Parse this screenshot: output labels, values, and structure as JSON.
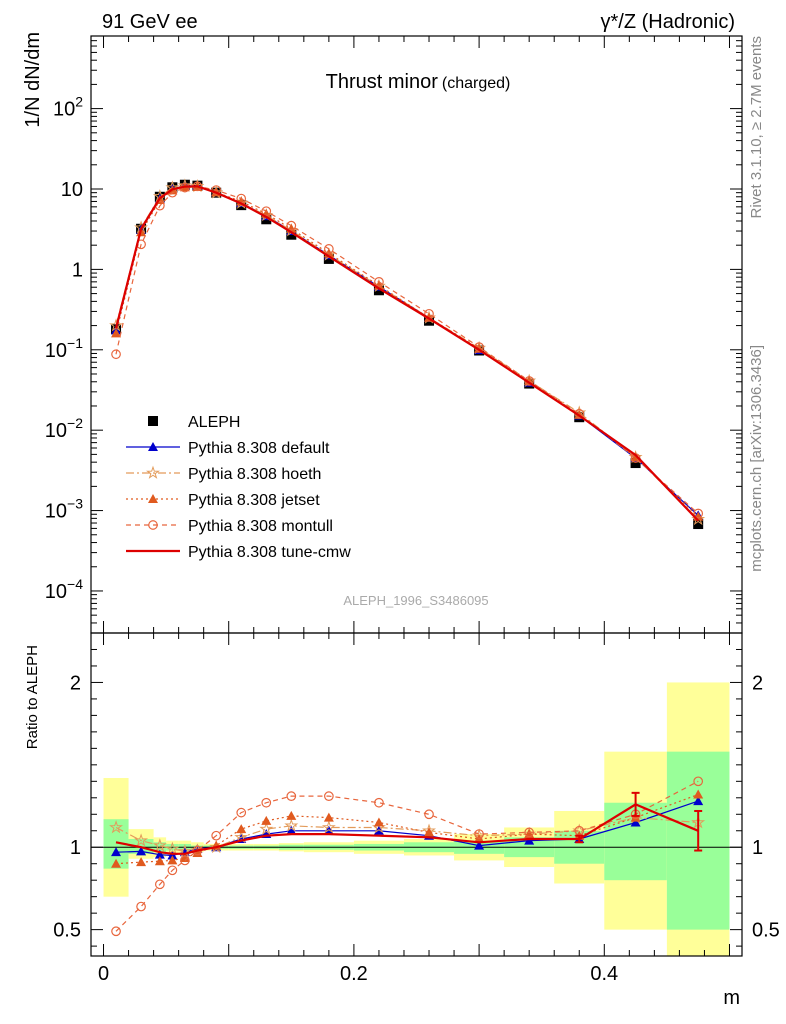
{
  "header": {
    "left": "91 GeV ee",
    "right": "γ*/Z (Hadronic)",
    "side_top": "Rivet 3.1.10, ≥ 2.7M events",
    "side_bottom": "mcplots.cern.ch [arXiv:1306.3436]"
  },
  "chart_data": [
    {
      "type": "line",
      "title": "Thrust minor",
      "subtitle": "(charged)",
      "ylabel": "1/N dN/dm",
      "xlabel": "m",
      "yscale": "log",
      "xlim": [
        -0.01,
        0.51
      ],
      "ylim": [
        3e-05,
        800
      ],
      "yticks": [
        {
          "v": 0.0001,
          "base": "10",
          "exp": "−4"
        },
        {
          "v": 0.001,
          "base": "10",
          "exp": "−3"
        },
        {
          "v": 0.01,
          "base": "10",
          "exp": "−2"
        },
        {
          "v": 0.1,
          "base": "10",
          "exp": "−1"
        },
        {
          "v": 1,
          "base": "1",
          "exp": ""
        },
        {
          "v": 10,
          "base": "10",
          "exp": ""
        },
        {
          "v": 100,
          "base": "10",
          "exp": "2"
        }
      ],
      "analysis": "ALEPH_1996_S3486095",
      "legend_position": "bottom-left",
      "x": [
        0.01,
        0.03,
        0.045,
        0.055,
        0.065,
        0.075,
        0.09,
        0.11,
        0.13,
        0.15,
        0.18,
        0.22,
        0.26,
        0.3,
        0.34,
        0.38,
        0.425,
        0.475
      ],
      "data": {
        "name": "ALEPH",
        "values": [
          0.18,
          3.2,
          8.0,
          10.5,
          11.3,
          11.0,
          9.0,
          6.3,
          4.2,
          2.7,
          1.35,
          0.55,
          0.23,
          0.098,
          0.038,
          0.0145,
          0.0039,
          0.00068
        ]
      },
      "series": [
        {
          "name": "Pythia 8.308 default",
          "color": "#0000cc",
          "dash": "",
          "marker": "triangle-filled",
          "values": [
            0.175,
            3.1,
            7.6,
            10.0,
            11.0,
            10.9,
            9.1,
            6.7,
            4.6,
            3.0,
            1.5,
            0.61,
            0.25,
            0.099,
            0.039,
            0.0152,
            0.0045,
            0.00087
          ]
        },
        {
          "name": "Pythia 8.308 hoeth",
          "color": "#e39b5a",
          "dash": "8,3,2,3",
          "marker": "star-open",
          "values": [
            0.2,
            3.3,
            8.1,
            10.4,
            11.0,
            10.8,
            9.0,
            6.7,
            4.7,
            3.05,
            1.52,
            0.62,
            0.25,
            0.105,
            0.041,
            0.0165,
            0.0046,
            0.00078
          ]
        },
        {
          "name": "Pythia 8.308 jetset",
          "color": "#e05a1f",
          "dash": "2,3",
          "marker": "triangle-filled",
          "values": [
            0.16,
            2.9,
            7.3,
            9.6,
            10.5,
            10.6,
            9.1,
            7.0,
            4.9,
            3.2,
            1.58,
            0.63,
            0.25,
            0.103,
            0.041,
            0.0155,
            0.0046,
            0.00084
          ]
        },
        {
          "name": "Pythia 8.308 montull",
          "color": "#e8663d",
          "dash": "5,4",
          "marker": "circle-open",
          "values": [
            0.088,
            2.05,
            6.2,
            9.0,
            10.4,
            10.8,
            9.7,
            7.6,
            5.3,
            3.5,
            1.8,
            0.7,
            0.28,
            0.108,
            0.041,
            0.016,
            0.0045,
            0.00092
          ]
        },
        {
          "name": "Pythia 8.308 tune-cmw",
          "color": "#dd0000",
          "dash": "",
          "marker": "none",
          "values": [
            0.185,
            3.2,
            7.7,
            9.9,
            10.7,
            10.8,
            9.0,
            6.6,
            4.5,
            2.9,
            1.45,
            0.58,
            0.245,
            0.1,
            0.039,
            0.0152,
            0.0049,
            0.00075
          ]
        }
      ]
    },
    {
      "type": "line",
      "ylabel": "Ratio to ALEPH",
      "xlabel": "m",
      "xlim": [
        -0.01,
        0.51
      ],
      "ylim": [
        0.34,
        2.3
      ],
      "yticks": [
        {
          "v": 0.5,
          "label": "0.5"
        },
        {
          "v": 1,
          "label": "1"
        },
        {
          "v": 2,
          "label": "2"
        }
      ],
      "xticks": [
        {
          "v": 0,
          "label": "0"
        },
        {
          "v": 0.2,
          "label": "0.2"
        },
        {
          "v": 0.4,
          "label": "0.4"
        }
      ],
      "reference_line": 1,
      "bands": [
        {
          "x0": 0.0,
          "x1": 0.02,
          "g": [
            0.87,
            1.17
          ],
          "y": [
            0.7,
            1.42
          ]
        },
        {
          "x0": 0.02,
          "x1": 0.04,
          "g": [
            0.96,
            1.05
          ],
          "y": [
            0.93,
            1.11
          ]
        },
        {
          "x0": 0.04,
          "x1": 0.05,
          "g": [
            0.97,
            1.03
          ],
          "y": [
            0.94,
            1.06
          ]
        },
        {
          "x0": 0.05,
          "x1": 0.06,
          "g": [
            0.98,
            1.02
          ],
          "y": [
            0.96,
            1.04
          ]
        },
        {
          "x0": 0.06,
          "x1": 0.07,
          "g": [
            0.98,
            1.02
          ],
          "y": [
            0.96,
            1.04
          ]
        },
        {
          "x0": 0.07,
          "x1": 0.08,
          "g": [
            0.99,
            1.01
          ],
          "y": [
            0.97,
            1.03
          ]
        },
        {
          "x0": 0.08,
          "x1": 0.1,
          "g": [
            0.99,
            1.01
          ],
          "y": [
            0.98,
            1.02
          ]
        },
        {
          "x0": 0.1,
          "x1": 0.12,
          "g": [
            0.99,
            1.01
          ],
          "y": [
            0.98,
            1.02
          ]
        },
        {
          "x0": 0.12,
          "x1": 0.14,
          "g": [
            0.99,
            1.01
          ],
          "y": [
            0.98,
            1.02
          ]
        },
        {
          "x0": 0.14,
          "x1": 0.16,
          "g": [
            0.985,
            1.015
          ],
          "y": [
            0.975,
            1.025
          ]
        },
        {
          "x0": 0.16,
          "x1": 0.2,
          "g": [
            0.985,
            1.015
          ],
          "y": [
            0.97,
            1.03
          ]
        },
        {
          "x0": 0.2,
          "x1": 0.24,
          "g": [
            0.98,
            1.02
          ],
          "y": [
            0.96,
            1.04
          ]
        },
        {
          "x0": 0.24,
          "x1": 0.28,
          "g": [
            0.97,
            1.03
          ],
          "y": [
            0.95,
            1.05
          ]
        },
        {
          "x0": 0.28,
          "x1": 0.32,
          "g": [
            0.96,
            1.04
          ],
          "y": [
            0.92,
            1.08
          ]
        },
        {
          "x0": 0.32,
          "x1": 0.36,
          "g": [
            0.94,
            1.06
          ],
          "y": [
            0.88,
            1.12
          ]
        },
        {
          "x0": 0.36,
          "x1": 0.4,
          "g": [
            0.9,
            1.1
          ],
          "y": [
            0.78,
            1.22
          ]
        },
        {
          "x0": 0.4,
          "x1": 0.45,
          "g": [
            0.8,
            1.27
          ],
          "y": [
            0.5,
            1.58
          ]
        },
        {
          "x0": 0.45,
          "x1": 0.5,
          "g": [
            0.5,
            1.58
          ],
          "y": [
            0.34,
            2.0
          ]
        }
      ],
      "series": [
        {
          "name": "Pythia 8.308 default",
          "values": [
            0.97,
            0.975,
            0.955,
            0.95,
            0.97,
            0.99,
            1.0,
            1.05,
            1.08,
            1.1,
            1.1,
            1.1,
            1.07,
            1.01,
            1.04,
            1.05,
            1.15,
            1.28
          ]
        },
        {
          "name": "Pythia 8.308 hoeth",
          "values": [
            1.12,
            1.04,
            1.01,
            0.99,
            0.975,
            0.98,
            1.0,
            1.06,
            1.11,
            1.13,
            1.12,
            1.12,
            1.1,
            1.07,
            1.08,
            1.1,
            1.18,
            1.15
          ]
        },
        {
          "name": "Pythia 8.308 jetset",
          "values": [
            0.9,
            0.91,
            0.915,
            0.92,
            0.935,
            0.965,
            1.01,
            1.11,
            1.16,
            1.19,
            1.18,
            1.15,
            1.09,
            1.05,
            1.08,
            1.07,
            1.18,
            1.32
          ]
        },
        {
          "name": "Pythia 8.308 montull",
          "values": [
            0.49,
            0.64,
            0.775,
            0.86,
            0.92,
            0.98,
            1.07,
            1.21,
            1.27,
            1.31,
            1.31,
            1.27,
            1.2,
            1.08,
            1.09,
            1.1,
            1.2,
            1.4
          ]
        },
        {
          "name": "Pythia 8.308 tune-cmw",
          "values": [
            1.03,
            1.0,
            0.97,
            0.96,
            0.96,
            0.98,
            1.0,
            1.04,
            1.07,
            1.08,
            1.08,
            1.07,
            1.06,
            1.03,
            1.05,
            1.05,
            1.26,
            1.1
          ],
          "errors": [
            0,
            0,
            0,
            0,
            0,
            0,
            0,
            0,
            0,
            0,
            0,
            0,
            0,
            0,
            0,
            0.02,
            0.07,
            0.12
          ]
        }
      ]
    }
  ]
}
